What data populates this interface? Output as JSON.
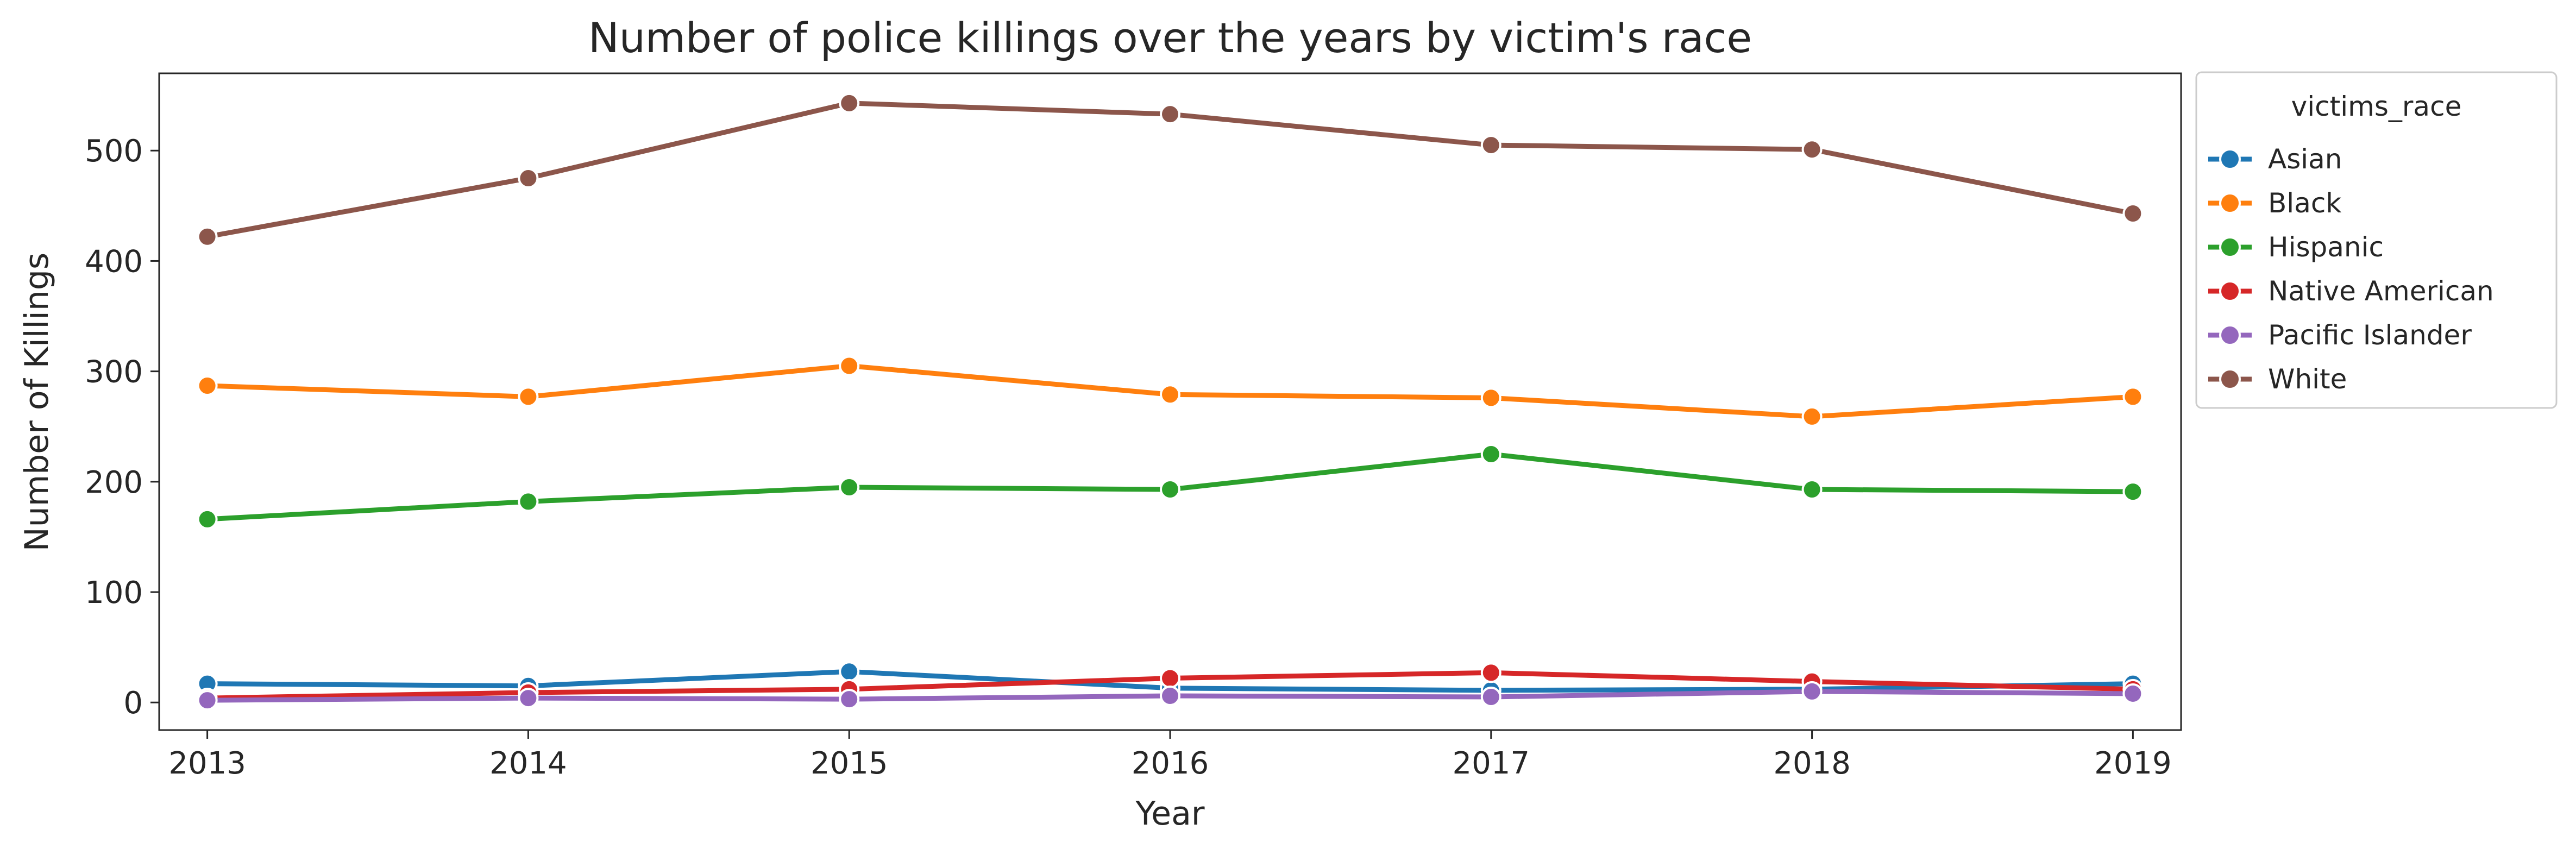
{
  "chart_data": {
    "type": "line",
    "title": "Number of police killings over the years by victim's race",
    "xlabel": "Year",
    "ylabel": "Number of Killings",
    "x": [
      2013,
      2014,
      2015,
      2016,
      2017,
      2018,
      2019
    ],
    "x_ticks": [
      "2013",
      "2014",
      "2015",
      "2016",
      "2017",
      "2018",
      "2019"
    ],
    "y_ticks": [
      "0",
      "100",
      "200",
      "300",
      "400",
      "500"
    ],
    "y_tick_values": [
      0,
      100,
      200,
      300,
      400,
      500
    ],
    "xlim": [
      2012.85,
      2019.15
    ],
    "ylim": [
      -25,
      570
    ],
    "grid": false,
    "legend": {
      "title": "victims_race",
      "placement": "outside-right"
    },
    "series": [
      {
        "name": "Asian",
        "color": "#1f77b4",
        "values": [
          17,
          15,
          28,
          13,
          11,
          12,
          17
        ]
      },
      {
        "name": "Black",
        "color": "#ff7f0e",
        "values": [
          287,
          277,
          305,
          279,
          276,
          259,
          277
        ]
      },
      {
        "name": "Hispanic",
        "color": "#2ca02c",
        "values": [
          166,
          182,
          195,
          193,
          225,
          193,
          191
        ]
      },
      {
        "name": "Native American",
        "color": "#d62728",
        "values": [
          4,
          9,
          12,
          22,
          27,
          19,
          12
        ]
      },
      {
        "name": "Pacific Islander",
        "color": "#9467bd",
        "values": [
          2,
          4,
          3,
          6,
          5,
          10,
          8
        ]
      },
      {
        "name": "White",
        "color": "#8c564b",
        "values": [
          422,
          475,
          543,
          533,
          505,
          501,
          443
        ]
      }
    ]
  }
}
